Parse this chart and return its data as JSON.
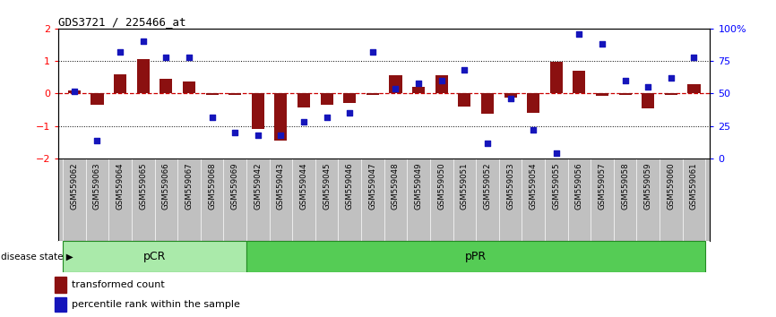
{
  "title": "GDS3721 / 225466_at",
  "samples": [
    "GSM559062",
    "GSM559063",
    "GSM559064",
    "GSM559065",
    "GSM559066",
    "GSM559067",
    "GSM559068",
    "GSM559069",
    "GSM559042",
    "GSM559043",
    "GSM559044",
    "GSM559045",
    "GSM559046",
    "GSM559047",
    "GSM559048",
    "GSM559049",
    "GSM559050",
    "GSM559051",
    "GSM559052",
    "GSM559053",
    "GSM559054",
    "GSM559055",
    "GSM559056",
    "GSM559057",
    "GSM559058",
    "GSM559059",
    "GSM559060",
    "GSM559061"
  ],
  "transformed_count": [
    0.1,
    -0.35,
    0.6,
    1.05,
    0.45,
    0.38,
    -0.04,
    -0.04,
    -1.08,
    -1.45,
    -0.42,
    -0.35,
    -0.28,
    -0.04,
    0.55,
    0.2,
    0.55,
    -0.4,
    -0.62,
    -0.12,
    -0.6,
    0.98,
    0.7,
    -0.08,
    -0.05,
    -0.45,
    -0.05,
    0.28
  ],
  "percentile_rank": [
    52,
    14,
    82,
    90,
    78,
    78,
    32,
    20,
    18,
    18,
    28,
    32,
    35,
    82,
    54,
    58,
    60,
    68,
    12,
    46,
    22,
    4,
    96,
    88,
    60,
    55,
    62,
    78
  ],
  "pCR_count": 8,
  "pPR_count": 20,
  "ylim": [
    -2.0,
    2.0
  ],
  "yticks_left": [
    -2,
    -1,
    0,
    1,
    2
  ],
  "yticks_right": [
    0,
    25,
    50,
    75,
    100
  ],
  "bar_color": "#8B1010",
  "dot_color": "#1515BB",
  "pCR_color": "#AAEAAA",
  "pPR_color": "#55CC55",
  "label_bg_color": "#C0C0C0",
  "zero_line_color": "#CC0000",
  "grid_line_color": "#000000",
  "disease_state_label": "disease state",
  "legend_bar_label": "transformed count",
  "legend_dot_label": "percentile rank within the sample"
}
